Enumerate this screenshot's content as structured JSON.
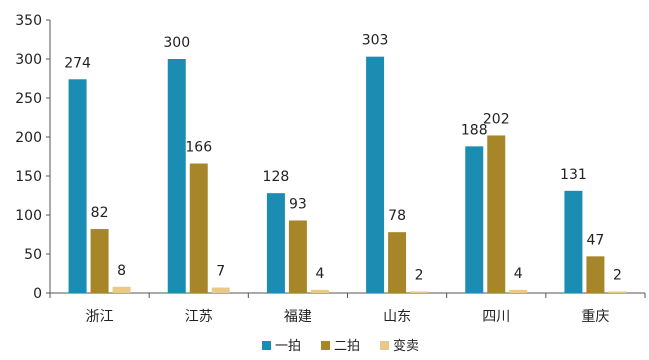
{
  "chart_data": {
    "type": "bar",
    "categories": [
      "浙江",
      "江苏",
      "福建",
      "山东",
      "四川",
      "重庆"
    ],
    "series": [
      {
        "name": "一拍",
        "values": [
          274,
          300,
          128,
          303,
          188,
          131
        ],
        "color": "#1b8db2"
      },
      {
        "name": "二拍",
        "values": [
          82,
          166,
          93,
          78,
          202,
          47
        ],
        "color": "#a7862a"
      },
      {
        "name": "变卖",
        "values": [
          8,
          7,
          4,
          2,
          4,
          2
        ],
        "color": "#e9c88a"
      }
    ],
    "ylim": [
      0,
      350
    ],
    "yticks": [
      0,
      50,
      100,
      150,
      200,
      250,
      300,
      350
    ],
    "legend_position": "bottom-center",
    "grid": false
  }
}
